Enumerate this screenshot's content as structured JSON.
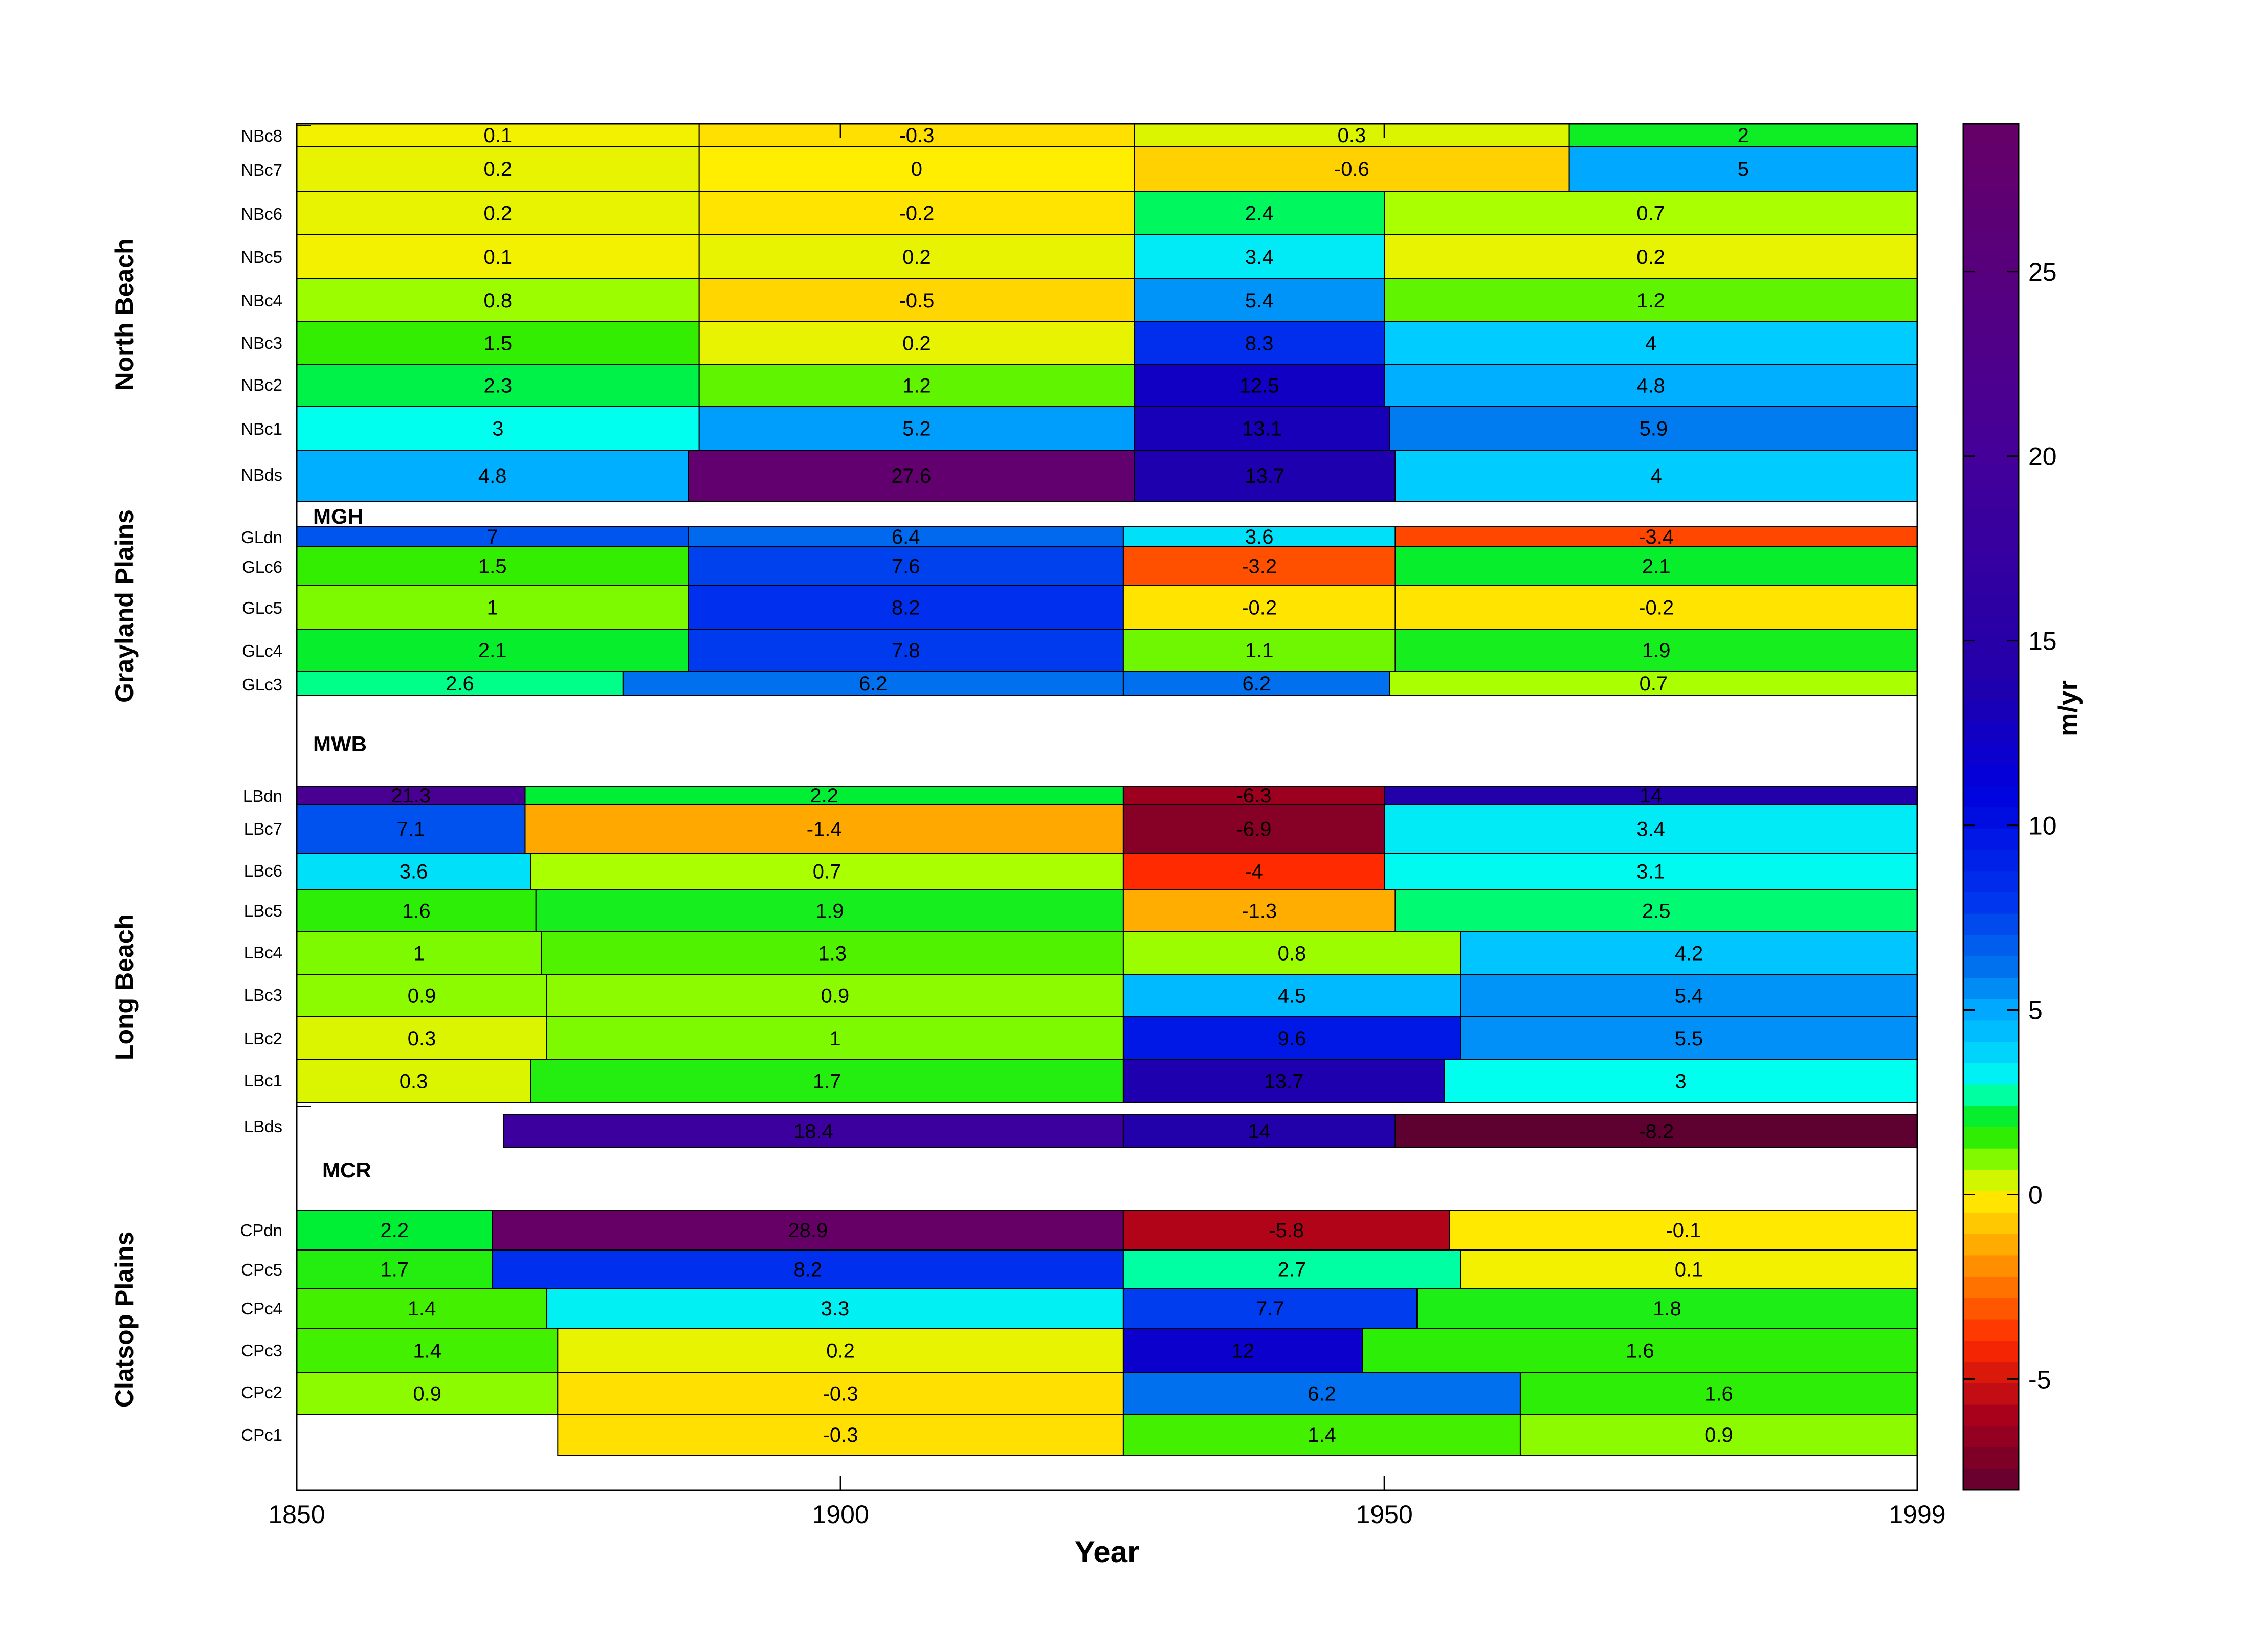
{
  "chart_data": {
    "type": "heatmap",
    "xlabel": "Year",
    "colorbar_label": "m/yr",
    "xlim": [
      1850,
      1999
    ],
    "x_ticks": [
      1850,
      1900,
      1950,
      1999
    ],
    "colorbar_range": [
      -8,
      29
    ],
    "colorbar_ticks": [
      25,
      20,
      15,
      10,
      5,
      0,
      -5
    ],
    "colormap_stops": [
      {
        "v": -8,
        "c": "#5e0030"
      },
      {
        "v": -6,
        "c": "#a8001c"
      },
      {
        "v": -4,
        "c": "#ff2a00"
      },
      {
        "v": -2,
        "c": "#ff8a00"
      },
      {
        "v": -0.5,
        "c": "#ffd600"
      },
      {
        "v": 0,
        "c": "#ffee00"
      },
      {
        "v": 0.7,
        "c": "#aaff00"
      },
      {
        "v": 1.5,
        "c": "#33ee00"
      },
      {
        "v": 2.2,
        "c": "#00ee33"
      },
      {
        "v": 2.6,
        "c": "#00ff88"
      },
      {
        "v": 3,
        "c": "#00ffee"
      },
      {
        "v": 4,
        "c": "#00ccff"
      },
      {
        "v": 5,
        "c": "#00a8ff"
      },
      {
        "v": 6,
        "c": "#0077ee"
      },
      {
        "v": 8,
        "c": "#0033ee"
      },
      {
        "v": 11,
        "c": "#0000dd"
      },
      {
        "v": 14,
        "c": "#2200aa"
      },
      {
        "v": 20,
        "c": "#440099"
      },
      {
        "v": 29,
        "c": "#660066"
      }
    ],
    "groups": [
      {
        "name": "North Beach",
        "rows_from": "NBc8",
        "rows_to": "NBds"
      },
      {
        "name": "Grayland Plains",
        "rows_from": "GLdn",
        "rows_to": "GLc3"
      },
      {
        "name": "Long Beach",
        "rows_from": "LBdn",
        "rows_to": "LBds"
      },
      {
        "name": "Clatsop Plains",
        "rows_from": "CPdn",
        "rows_to": "CPc1"
      }
    ],
    "annotations": [
      {
        "text": "MGH",
        "after_row": "NBds"
      },
      {
        "text": "MWB",
        "after_row": "GLc3"
      },
      {
        "text": "MCR",
        "after_row": "LBds"
      }
    ],
    "rows": [
      {
        "name": "NBc8",
        "segments": [
          {
            "x0": 1850,
            "x1": 1887,
            "value": 0.1
          },
          {
            "x0": 1887,
            "x1": 1927,
            "value": -0.3
          },
          {
            "x0": 1927,
            "x1": 1967,
            "value": 0.3
          },
          {
            "x0": 1967,
            "x1": 1999,
            "value": 2
          }
        ]
      },
      {
        "name": "NBc7",
        "segments": [
          {
            "x0": 1850,
            "x1": 1887,
            "value": 0.2
          },
          {
            "x0": 1887,
            "x1": 1927,
            "value": 0
          },
          {
            "x0": 1927,
            "x1": 1967,
            "value": -0.6
          },
          {
            "x0": 1967,
            "x1": 1999,
            "value": 5
          }
        ]
      },
      {
        "name": "NBc6",
        "segments": [
          {
            "x0": 1850,
            "x1": 1887,
            "value": 0.2
          },
          {
            "x0": 1887,
            "x1": 1927,
            "value": -0.2
          },
          {
            "x0": 1927,
            "x1": 1950,
            "value": 2.4
          },
          {
            "x0": 1950,
            "x1": 1999,
            "value": 0.7
          }
        ]
      },
      {
        "name": "NBc5",
        "segments": [
          {
            "x0": 1850,
            "x1": 1887,
            "value": 0.1
          },
          {
            "x0": 1887,
            "x1": 1927,
            "value": 0.2
          },
          {
            "x0": 1927,
            "x1": 1950,
            "value": 3.4
          },
          {
            "x0": 1950,
            "x1": 1999,
            "value": 0.2
          }
        ]
      },
      {
        "name": "NBc4",
        "segments": [
          {
            "x0": 1850,
            "x1": 1887,
            "value": 0.8
          },
          {
            "x0": 1887,
            "x1": 1927,
            "value": -0.5
          },
          {
            "x0": 1927,
            "x1": 1950,
            "value": 5.4
          },
          {
            "x0": 1950,
            "x1": 1999,
            "value": 1.2
          }
        ]
      },
      {
        "name": "NBc3",
        "segments": [
          {
            "x0": 1850,
            "x1": 1887,
            "value": 1.5
          },
          {
            "x0": 1887,
            "x1": 1927,
            "value": 0.2
          },
          {
            "x0": 1927,
            "x1": 1950,
            "value": 8.3
          },
          {
            "x0": 1950,
            "x1": 1999,
            "value": 4
          }
        ]
      },
      {
        "name": "NBc2",
        "segments": [
          {
            "x0": 1850,
            "x1": 1887,
            "value": 2.3
          },
          {
            "x0": 1887,
            "x1": 1927,
            "value": 1.2
          },
          {
            "x0": 1927,
            "x1": 1950,
            "value": 12.5
          },
          {
            "x0": 1950,
            "x1": 1999,
            "value": 4.8
          }
        ]
      },
      {
        "name": "NBc1",
        "segments": [
          {
            "x0": 1850,
            "x1": 1887,
            "value": 3
          },
          {
            "x0": 1887,
            "x1": 1927,
            "value": 5.2
          },
          {
            "x0": 1927,
            "x1": 1950.5,
            "value": 13.1
          },
          {
            "x0": 1950.5,
            "x1": 1999,
            "value": 5.9
          }
        ]
      },
      {
        "name": "NBds",
        "segments": [
          {
            "x0": 1850,
            "x1": 1886,
            "value": 4.8
          },
          {
            "x0": 1886,
            "x1": 1927,
            "value": 27.6
          },
          {
            "x0": 1927,
            "x1": 1951,
            "value": 13.7
          },
          {
            "x0": 1951,
            "x1": 1999,
            "value": 4
          }
        ]
      },
      {
        "name": "GLdn",
        "segments": [
          {
            "x0": 1850,
            "x1": 1886,
            "value": 7
          },
          {
            "x0": 1886,
            "x1": 1926,
            "value": 6.4
          },
          {
            "x0": 1926,
            "x1": 1951,
            "value": 3.6
          },
          {
            "x0": 1951,
            "x1": 1999,
            "value": -3.4
          }
        ]
      },
      {
        "name": "GLc6",
        "segments": [
          {
            "x0": 1850,
            "x1": 1886,
            "value": 1.5
          },
          {
            "x0": 1886,
            "x1": 1926,
            "value": 7.6
          },
          {
            "x0": 1926,
            "x1": 1951,
            "value": -3.2
          },
          {
            "x0": 1951,
            "x1": 1999,
            "value": 2.1
          }
        ]
      },
      {
        "name": "GLc5",
        "segments": [
          {
            "x0": 1850,
            "x1": 1886,
            "value": 1
          },
          {
            "x0": 1886,
            "x1": 1926,
            "value": 8.2
          },
          {
            "x0": 1926,
            "x1": 1951,
            "value": -0.2
          },
          {
            "x0": 1951,
            "x1": 1999,
            "value": -0.2
          }
        ]
      },
      {
        "name": "GLc4",
        "segments": [
          {
            "x0": 1850,
            "x1": 1886,
            "value": 2.1
          },
          {
            "x0": 1886,
            "x1": 1926,
            "value": 7.8
          },
          {
            "x0": 1926,
            "x1": 1951,
            "value": 1.1
          },
          {
            "x0": 1951,
            "x1": 1999,
            "value": 1.9
          }
        ]
      },
      {
        "name": "GLc3",
        "segments": [
          {
            "x0": 1850,
            "x1": 1880,
            "value": 2.6
          },
          {
            "x0": 1880,
            "x1": 1926,
            "value": 6.2
          },
          {
            "x0": 1926,
            "x1": 1950.5,
            "value": 6.2
          },
          {
            "x0": 1950.5,
            "x1": 1999,
            "value": 0.7
          }
        ]
      },
      {
        "name": "LBdn",
        "segments": [
          {
            "x0": 1850,
            "x1": 1871,
            "value": 21.3
          },
          {
            "x0": 1871,
            "x1": 1926,
            "value": 2.2
          },
          {
            "x0": 1926,
            "x1": 1950,
            "value": -6.3
          },
          {
            "x0": 1950,
            "x1": 1999,
            "value": 14
          }
        ]
      },
      {
        "name": "LBc7",
        "segments": [
          {
            "x0": 1850,
            "x1": 1871,
            "value": 7.1
          },
          {
            "x0": 1871,
            "x1": 1926,
            "value": -1.4
          },
          {
            "x0": 1926,
            "x1": 1950,
            "value": -6.9
          },
          {
            "x0": 1950,
            "x1": 1999,
            "value": 3.4
          }
        ]
      },
      {
        "name": "LBc6",
        "segments": [
          {
            "x0": 1850,
            "x1": 1871.5,
            "value": 3.6
          },
          {
            "x0": 1871.5,
            "x1": 1926,
            "value": 0.7
          },
          {
            "x0": 1926,
            "x1": 1950,
            "value": -4
          },
          {
            "x0": 1950,
            "x1": 1999,
            "value": 3.1
          }
        ]
      },
      {
        "name": "LBc5",
        "segments": [
          {
            "x0": 1850,
            "x1": 1872,
            "value": 1.6
          },
          {
            "x0": 1872,
            "x1": 1926,
            "value": 1.9
          },
          {
            "x0": 1926,
            "x1": 1951,
            "value": -1.3
          },
          {
            "x0": 1951,
            "x1": 1999,
            "value": 2.5
          }
        ]
      },
      {
        "name": "LBc4",
        "segments": [
          {
            "x0": 1850,
            "x1": 1872.5,
            "value": 1
          },
          {
            "x0": 1872.5,
            "x1": 1926,
            "value": 1.3
          },
          {
            "x0": 1926,
            "x1": 1957,
            "value": 0.8
          },
          {
            "x0": 1957,
            "x1": 1999,
            "value": 4.2
          }
        ]
      },
      {
        "name": "LBc3",
        "segments": [
          {
            "x0": 1850,
            "x1": 1873,
            "value": 0.9
          },
          {
            "x0": 1873,
            "x1": 1926,
            "value": 0.9
          },
          {
            "x0": 1926,
            "x1": 1957,
            "value": 4.5
          },
          {
            "x0": 1957,
            "x1": 1999,
            "value": 5.4
          }
        ]
      },
      {
        "name": "LBc2",
        "segments": [
          {
            "x0": 1850,
            "x1": 1873,
            "value": 0.3
          },
          {
            "x0": 1873,
            "x1": 1926,
            "value": 1
          },
          {
            "x0": 1926,
            "x1": 1957,
            "value": 9.6
          },
          {
            "x0": 1957,
            "x1": 1999,
            "value": 5.5
          }
        ]
      },
      {
        "name": "LBc1",
        "segments": [
          {
            "x0": 1850,
            "x1": 1871.5,
            "value": 0.3
          },
          {
            "x0": 1871.5,
            "x1": 1926,
            "value": 1.7
          },
          {
            "x0": 1926,
            "x1": 1955.5,
            "value": 13.7
          },
          {
            "x0": 1955.5,
            "x1": 1999,
            "value": 3
          }
        ]
      },
      {
        "name": "LBds",
        "segments": [
          {
            "x0": 1869,
            "x1": 1926,
            "value": 18.4
          },
          {
            "x0": 1926,
            "x1": 1951,
            "value": 14
          },
          {
            "x0": 1951,
            "x1": 1999,
            "value": -8.2
          }
        ]
      },
      {
        "name": "CPdn",
        "segments": [
          {
            "x0": 1850,
            "x1": 1868,
            "value": 2.2
          },
          {
            "x0": 1868,
            "x1": 1926,
            "value": 28.9
          },
          {
            "x0": 1926,
            "x1": 1956,
            "value": -5.8
          },
          {
            "x0": 1956,
            "x1": 1999,
            "value": -0.1
          }
        ]
      },
      {
        "name": "CPc5",
        "segments": [
          {
            "x0": 1850,
            "x1": 1868,
            "value": 1.7
          },
          {
            "x0": 1868,
            "x1": 1926,
            "value": 8.2
          },
          {
            "x0": 1926,
            "x1": 1957,
            "value": 2.7
          },
          {
            "x0": 1957,
            "x1": 1999,
            "value": 0.1
          }
        ]
      },
      {
        "name": "CPc4",
        "segments": [
          {
            "x0": 1850,
            "x1": 1873,
            "value": 1.4
          },
          {
            "x0": 1873,
            "x1": 1926,
            "value": 3.3
          },
          {
            "x0": 1926,
            "x1": 1953,
            "value": 7.7
          },
          {
            "x0": 1953,
            "x1": 1999,
            "value": 1.8
          }
        ]
      },
      {
        "name": "CPc3",
        "segments": [
          {
            "x0": 1850,
            "x1": 1874,
            "value": 1.4
          },
          {
            "x0": 1874,
            "x1": 1926,
            "value": 0.2
          },
          {
            "x0": 1926,
            "x1": 1948,
            "value": 12
          },
          {
            "x0": 1948,
            "x1": 1999,
            "value": 1.6
          }
        ]
      },
      {
        "name": "CPc2",
        "segments": [
          {
            "x0": 1850,
            "x1": 1874,
            "value": 0.9
          },
          {
            "x0": 1874,
            "x1": 1926,
            "value": -0.3
          },
          {
            "x0": 1926,
            "x1": 1962.5,
            "value": 6.2
          },
          {
            "x0": 1962.5,
            "x1": 1999,
            "value": 1.6
          }
        ]
      },
      {
        "name": "CPc1",
        "segments": [
          {
            "x0": 1874,
            "x1": 1926,
            "value": -0.3
          },
          {
            "x0": 1926,
            "x1": 1962.5,
            "value": 1.4
          },
          {
            "x0": 1962.5,
            "x1": 1999,
            "value": 0.9
          }
        ]
      }
    ]
  }
}
